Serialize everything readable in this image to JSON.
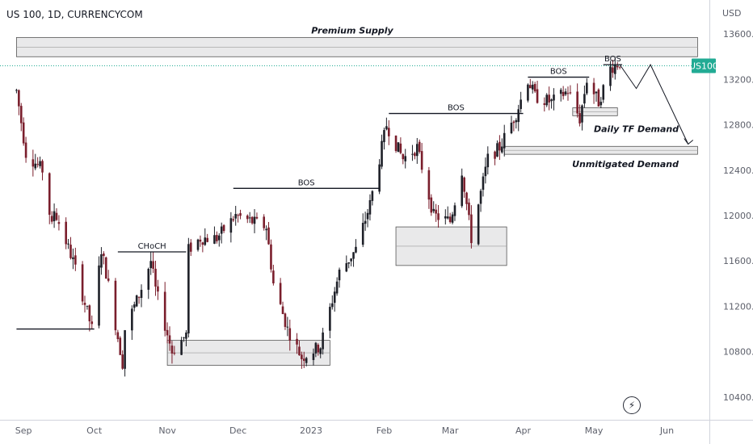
{
  "header": {
    "symbol": "US 100, 1D, CURRENCYCOM"
  },
  "currency": "USD",
  "price_badge": {
    "label": "US100",
    "color": "#22ab94"
  },
  "colors": {
    "up": "#1e2028",
    "down": "#7a1e2c",
    "zone_fill": "#e9e9ea",
    "zone_stroke": "#555555"
  },
  "chart_data": {
    "type": "candlestick",
    "ylim": [
      10200,
      13900
    ],
    "yticks": [
      10400,
      10800,
      11200,
      11600,
      12000,
      12400,
      12800,
      13200,
      13600
    ],
    "ytick_labels": [
      "10400.0",
      "10800.0",
      "11200.0",
      "11600.0",
      "12000.0",
      "12400.0",
      "12800.0",
      "13200.0",
      "13600.0"
    ],
    "xticks": [
      "Sep",
      "Oct",
      "Nov",
      "Dec",
      "2023",
      "Feb",
      "Mar",
      "Apr",
      "May",
      "Jun"
    ],
    "xtick_dates": [
      "2022-09-01",
      "2022-10-01",
      "2022-11-01",
      "2022-12-01",
      "2023-01-01",
      "2023-02-01",
      "2023-03-01",
      "2023-04-01",
      "2023-05-01",
      "2023-06-01"
    ],
    "candle_dates": {
      "start": "2022-08-29",
      "end": "2023-05-12",
      "weekdays_only": true
    },
    "anchors": [
      [
        "2022-08-29",
        13100
      ],
      [
        "2022-09-02",
        12550
      ],
      [
        "2022-09-09",
        12400
      ],
      [
        "2022-09-13",
        11900
      ],
      [
        "2022-09-14",
        12050
      ],
      [
        "2022-09-22",
        11600
      ],
      [
        "2022-09-30",
        11000
      ],
      [
        "2022-10-04",
        11700
      ],
      [
        "2022-10-06",
        11500
      ],
      [
        "2022-10-13",
        10700
      ],
      [
        "2022-10-14",
        11000
      ],
      [
        "2022-10-20",
        11300
      ],
      [
        "2022-10-25",
        11600
      ],
      [
        "2022-10-27",
        11350
      ],
      [
        "2022-11-03",
        10800
      ],
      [
        "2022-11-09",
        10950
      ],
      [
        "2022-11-10",
        11700
      ],
      [
        "2022-11-15",
        11800
      ],
      [
        "2022-11-22",
        11800
      ],
      [
        "2022-11-30",
        12000
      ],
      [
        "2022-12-13",
        11900
      ],
      [
        "2022-12-16",
        11400
      ],
      [
        "2022-12-22",
        11000
      ],
      [
        "2022-12-28",
        10750
      ],
      [
        "2023-01-05",
        10850
      ],
      [
        "2023-01-13",
        11500
      ],
      [
        "2023-01-20",
        11700
      ],
      [
        "2023-01-26",
        12100
      ],
      [
        "2023-02-02",
        12800
      ],
      [
        "2023-02-09",
        12500
      ],
      [
        "2023-02-15",
        12600
      ],
      [
        "2023-02-22",
        12000
      ],
      [
        "2023-03-01",
        11950
      ],
      [
        "2023-03-06",
        12400
      ],
      [
        "2023-03-10",
        11800
      ],
      [
        "2023-03-17",
        12500
      ],
      [
        "2023-03-22",
        12600
      ],
      [
        "2023-03-29",
        12900
      ],
      [
        "2023-04-03",
        13200
      ],
      [
        "2023-04-06",
        13050
      ],
      [
        "2023-04-13",
        13000
      ],
      [
        "2023-04-20",
        13100
      ],
      [
        "2023-04-25",
        12850
      ],
      [
        "2023-04-28",
        13200
      ],
      [
        "2023-05-03",
        13000
      ],
      [
        "2023-05-08",
        13300
      ],
      [
        "2023-05-12",
        13350
      ]
    ],
    "zones": [
      {
        "name": "Premium Supply",
        "label_text": "Premium Supply",
        "x0": "2022-08-29",
        "x1": "2023-06-14",
        "y0": 13400,
        "y1": 13570
      },
      {
        "name": "Daily TF Demand",
        "label_text": "Daily TF Demand",
        "x0": "2023-04-22",
        "x1": "2023-05-11",
        "y0": 12880,
        "y1": 12950
      },
      {
        "name": "Unmitigated Demand",
        "label_text": "Unmitigated Demand",
        "x0": "2023-03-24",
        "x1": "2023-06-14",
        "y0": 12540,
        "y1": 12610
      },
      {
        "name": "demand-feb",
        "label_text": "",
        "x0": "2023-02-06",
        "x1": "2023-03-25",
        "y0": 11560,
        "y1": 11900
      },
      {
        "name": "demand-nov",
        "label_text": "",
        "x0": "2022-11-01",
        "x1": "2023-01-09",
        "y0": 10680,
        "y1": 10900
      }
    ],
    "structure_lines": [
      {
        "label": "CHoCH",
        "x0": "2022-10-11",
        "x1": "2022-11-09",
        "y": 11680
      },
      {
        "label": "BOS",
        "x0": "2022-11-29",
        "x1": "2023-01-30",
        "y": 12240
      },
      {
        "label": "BOS",
        "x0": "2023-02-03",
        "x1": "2023-04-01",
        "y": 12900
      },
      {
        "label": "BOS",
        "x0": "2023-04-03",
        "x1": "2023-04-29",
        "y": 13220
      },
      {
        "label": "BOS",
        "x0": "2023-05-05",
        "x1": "2023-05-13",
        "y": 13330
      },
      {
        "label": "",
        "x0": "2022-08-29",
        "x1": "2022-10-01",
        "y": 11000
      }
    ],
    "current_price": 13320
  }
}
